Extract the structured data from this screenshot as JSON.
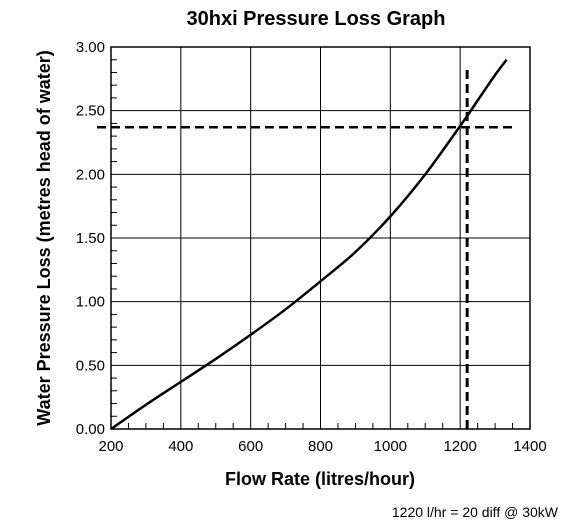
{
  "chart_data": {
    "type": "line",
    "title": "30hxi Pressure Loss Graph",
    "xlabel": "Flow Rate (litres/hour)",
    "ylabel": "Water Pressure Loss (metres head of water)",
    "xlim": [
      200,
      1400
    ],
    "ylim": [
      0,
      3
    ],
    "x_ticks": [
      "200",
      "400",
      "600",
      "800",
      "1000",
      "1200",
      "1400"
    ],
    "y_ticks": [
      "0.00",
      "0.50",
      "1.00",
      "1.50",
      "2.00",
      "2.50",
      "3.00"
    ],
    "grid": true,
    "series": [
      {
        "x": [
          200,
          300,
          400,
          500,
          600,
          700,
          800,
          900,
          1000,
          1100,
          1200,
          1260,
          1300,
          1333
        ],
        "y": [
          0.0,
          0.19,
          0.37,
          0.55,
          0.74,
          0.94,
          1.16,
          1.39,
          1.67,
          2.0,
          2.38,
          2.62,
          2.78,
          2.9
        ]
      }
    ],
    "reference_lines": {
      "vertical_x": 1220,
      "horizontal_y": 2.37
    },
    "footnote": "1220 l/hr = 20 diff @ 30kW"
  }
}
